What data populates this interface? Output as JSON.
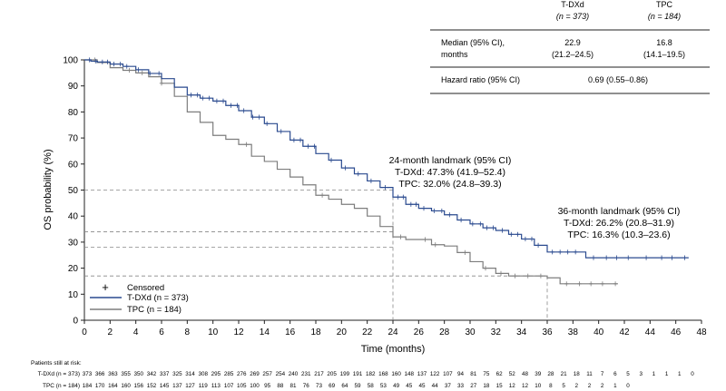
{
  "chart_data": {
    "type": "line",
    "xlabel": "Time (months)",
    "ylabel": "OS probability (%)",
    "xlim": [
      0,
      48
    ],
    "ylim": [
      0,
      100
    ],
    "x_ticks": [
      0,
      2,
      4,
      6,
      8,
      10,
      12,
      14,
      16,
      18,
      20,
      22,
      24,
      26,
      28,
      30,
      32,
      34,
      36,
      38,
      40,
      42,
      44,
      46,
      48
    ],
    "y_ticks": [
      0,
      10,
      20,
      30,
      40,
      50,
      60,
      70,
      80,
      90,
      100
    ],
    "grid": false,
    "step": true,
    "series": [
      {
        "name": "T-DXd",
        "n_label": "(n = 373)",
        "color": "#2a4a8f",
        "points": [
          [
            0,
            100
          ],
          [
            0.5,
            99.5
          ],
          [
            1,
            99.2
          ],
          [
            2,
            98.4
          ],
          [
            3,
            97.5
          ],
          [
            4,
            96.2
          ],
          [
            5,
            94.8
          ],
          [
            6,
            92.8
          ],
          [
            7,
            89.5
          ],
          [
            8,
            86.5
          ],
          [
            9,
            85.3
          ],
          [
            10,
            84.2
          ],
          [
            11,
            82.5
          ],
          [
            12,
            80.5
          ],
          [
            13,
            78.0
          ],
          [
            14,
            75.5
          ],
          [
            15,
            72.5
          ],
          [
            16,
            69.2
          ],
          [
            17,
            66.8
          ],
          [
            18,
            64.0
          ],
          [
            19,
            61.5
          ],
          [
            20,
            58.5
          ],
          [
            21,
            56.2
          ],
          [
            22,
            53.5
          ],
          [
            23,
            51.0
          ],
          [
            24,
            47.3
          ],
          [
            25,
            44.5
          ],
          [
            26,
            43.0
          ],
          [
            27,
            42.0
          ],
          [
            28,
            40.5
          ],
          [
            29,
            38.5
          ],
          [
            30,
            37.0
          ],
          [
            31,
            35.5
          ],
          [
            32,
            34.5
          ],
          [
            33,
            33.0
          ],
          [
            34,
            31.2
          ],
          [
            35,
            28.8
          ],
          [
            36,
            26.2
          ],
          [
            37,
            26.2
          ],
          [
            38,
            26.2
          ],
          [
            39,
            24.0
          ],
          [
            40,
            24.0
          ],
          [
            42,
            24.0
          ],
          [
            44,
            24.0
          ],
          [
            46,
            24.0
          ],
          [
            47,
            24.0
          ]
        ],
        "censored": [
          0.4,
          0.9,
          1.4,
          1.8,
          2.3,
          2.8,
          3.3,
          4.2,
          5.1,
          5.8,
          8.3,
          8.8,
          9.2,
          9.7,
          10.3,
          10.8,
          11.4,
          11.9,
          12.4,
          13.1,
          13.6,
          14.2,
          15.3,
          16.3,
          16.8,
          17.4,
          17.9,
          19.2,
          20.3,
          21.3,
          22.3,
          23.4,
          24.4,
          24.8,
          25.4,
          25.8,
          26.4,
          27.2,
          27.8,
          28.4,
          29.3,
          30.2,
          30.8,
          31.3,
          31.8,
          32.5,
          33.2,
          33.7,
          34.3,
          34.8,
          35.3,
          36.4,
          37.0,
          37.6,
          38.2,
          39.6,
          40.6,
          41.4,
          42.3,
          43.7,
          44.9,
          45.7,
          46.7
        ]
      },
      {
        "name": "TPC",
        "n_label": "(n = 184)",
        "color": "#7d7d7d",
        "points": [
          [
            0,
            100
          ],
          [
            1,
            99.0
          ],
          [
            2,
            97.0
          ],
          [
            3,
            96.0
          ],
          [
            4,
            95.0
          ],
          [
            5,
            93.5
          ],
          [
            6,
            91.0
          ],
          [
            7,
            86.0
          ],
          [
            8,
            80.0
          ],
          [
            9,
            76.0
          ],
          [
            10,
            71.0
          ],
          [
            11,
            69.5
          ],
          [
            12,
            67.5
          ],
          [
            13,
            63.0
          ],
          [
            14,
            61.0
          ],
          [
            15,
            58.0
          ],
          [
            16,
            55.0
          ],
          [
            17,
            52.0
          ],
          [
            18,
            48.0
          ],
          [
            19,
            46.5
          ],
          [
            20,
            44.5
          ],
          [
            21,
            43.0
          ],
          [
            22,
            40.0
          ],
          [
            23,
            36.0
          ],
          [
            24,
            32.0
          ],
          [
            25,
            31.0
          ],
          [
            26,
            31.0
          ],
          [
            27,
            29.0
          ],
          [
            28,
            28.5
          ],
          [
            29,
            26.0
          ],
          [
            30,
            22.5
          ],
          [
            31,
            20.0
          ],
          [
            32,
            18.0
          ],
          [
            33,
            17.0
          ],
          [
            34,
            17.0
          ],
          [
            35,
            17.0
          ],
          [
            36,
            16.3
          ],
          [
            37,
            14.0
          ],
          [
            38,
            14.0
          ],
          [
            39,
            14.0
          ],
          [
            40,
            14.0
          ],
          [
            41,
            14.0
          ],
          [
            41.5,
            14.0
          ]
        ],
        "censored": [
          0.8,
          3.5,
          4.5,
          6.0,
          12.6,
          18.5,
          24.6,
          26.5,
          27.3,
          29.6,
          31.2,
          32.4,
          33.5,
          34.5,
          35.5,
          37.5,
          38.5,
          39.4,
          40.3,
          41.3
        ]
      }
    ],
    "landmark_lines": [
      {
        "x": 24,
        "y_values": [
          50,
          34,
          28
        ]
      },
      {
        "x": 36,
        "y_values": [
          17
        ]
      }
    ],
    "legend": {
      "position": "bottom-left",
      "censored_symbol": "+",
      "censored_label": "Censored",
      "entries": [
        "T-DXd (n = 373)",
        "TPC (n = 184)"
      ]
    },
    "annotations": {
      "landmark24": {
        "title": "24-month landmark (95% CI)",
        "line1": "T-DXd: 47.3% (41.9–52.4)",
        "line2": "TPC: 32.0% (24.8–39.3)"
      },
      "landmark36": {
        "title": "36-month landmark (95% CI)",
        "line1": "T-DXd: 26.2% (20.8–31.9)",
        "line2": "TPC: 16.3% (10.3–23.6)"
      }
    },
    "summary_table": {
      "col1_name": "T-DXd",
      "col1_n": "(n = 373)",
      "col2_name": "TPC",
      "col2_n": "(n = 184)",
      "row1_label_line1": "Median (95% CI),",
      "row1_label_line2": "months",
      "row1_col1_line1": "22.9",
      "row1_col1_line2": "(21.2–24.5)",
      "row1_col2_line1": "16.8",
      "row1_col2_line2": "(14.1–19.5)",
      "row2_label": "Hazard ratio (95% CI)",
      "row2_value": "0.69 (0.55–0.86)"
    },
    "risk_table": {
      "title": "Patients still at risk:",
      "rows": [
        {
          "label": "T-DXd (n = 373)",
          "values": [
            "373",
            "366",
            "363",
            "355",
            "350",
            "342",
            "337",
            "325",
            "314",
            "308",
            "295",
            "285",
            "276",
            "269",
            "257",
            "254",
            "240",
            "231",
            "217",
            "205",
            "199",
            "191",
            "182",
            "168",
            "160",
            "148",
            "137",
            "122",
            "107",
            "94",
            "81",
            "75",
            "62",
            "52",
            "48",
            "39",
            "28",
            "21",
            "18",
            "11",
            "7",
            "6",
            "5",
            "3",
            "1",
            "1",
            "1",
            "0"
          ]
        },
        {
          "label": "TPC (n = 184)",
          "values": [
            "184",
            "170",
            "164",
            "160",
            "156",
            "152",
            "145",
            "137",
            "127",
            "119",
            "113",
            "107",
            "105",
            "100",
            "95",
            "88",
            "81",
            "76",
            "73",
            "69",
            "64",
            "59",
            "58",
            "53",
            "49",
            "45",
            "45",
            "44",
            "37",
            "33",
            "27",
            "18",
            "15",
            "12",
            "12",
            "10",
            "8",
            "5",
            "2",
            "2",
            "2",
            "1",
            "0"
          ]
        }
      ]
    }
  }
}
